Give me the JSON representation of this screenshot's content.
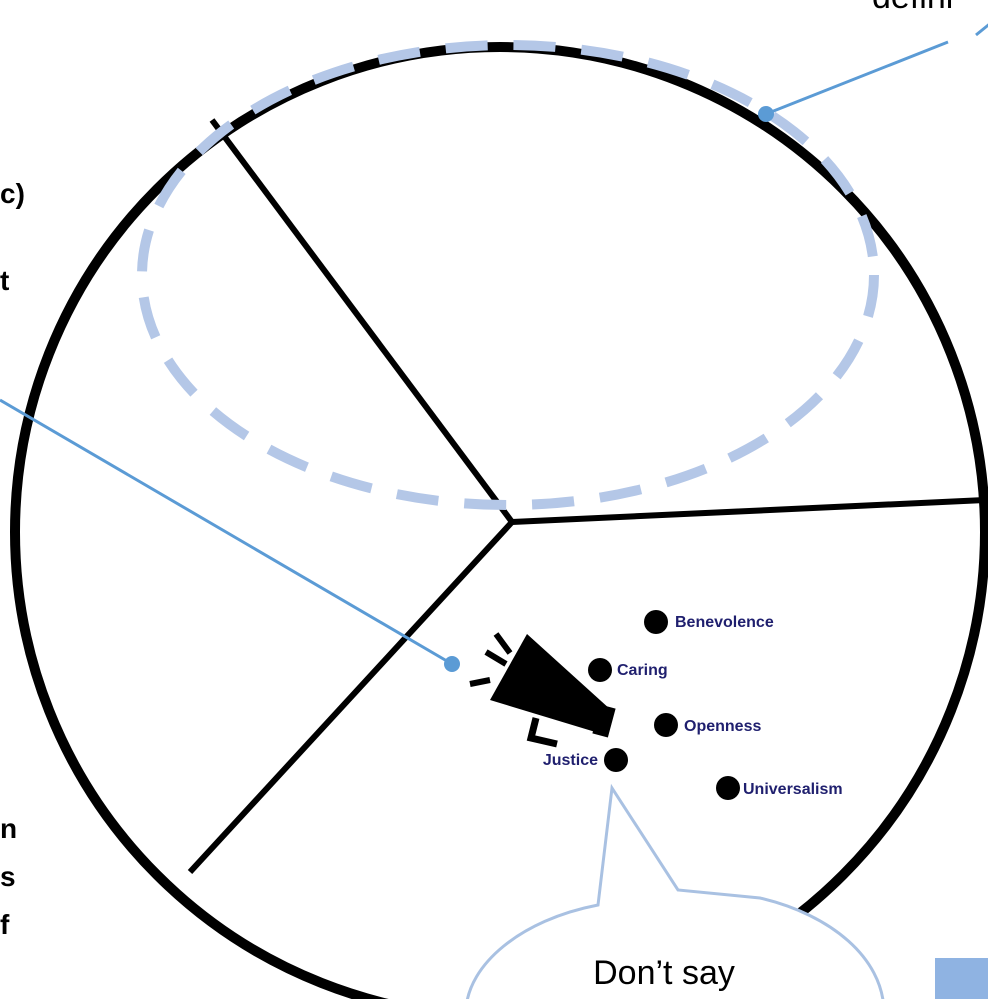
{
  "callouts": {
    "top_right_fragment": "defini",
    "left_fragments": [
      "c)",
      "t",
      "n",
      "s",
      "f"
    ],
    "bubble_text": "Don’t say"
  },
  "values": [
    {
      "label": "Benevolence"
    },
    {
      "label": "Caring"
    },
    {
      "label": "Openness"
    },
    {
      "label": "Justice"
    },
    {
      "label": "Universalism"
    }
  ],
  "colors": {
    "outline": "#000000",
    "dashed_ellipse": "#b4c7e7",
    "connector": "#5b9bd5",
    "value_label": "#1f1f6e",
    "bubble_stroke": "#a9c1e2",
    "corner_box": "#8fb3e2"
  },
  "icons": [
    "megaphone-icon"
  ]
}
